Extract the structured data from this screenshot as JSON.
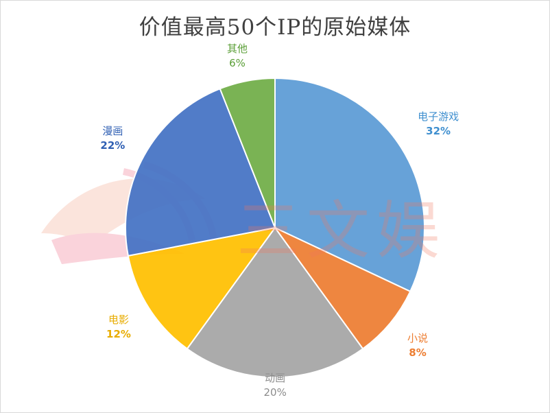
{
  "chart_data": {
    "type": "pie",
    "title": "价值最高50个IP的原始媒体",
    "categories": [
      "电子游戏",
      "小说",
      "动画",
      "电影",
      "漫画",
      "其他"
    ],
    "values": [
      32,
      8,
      20,
      12,
      22,
      6
    ],
    "value_labels": [
      "32%",
      "8%",
      "20%",
      "12%",
      "22%",
      "6%"
    ],
    "colors": [
      "#5b9bd5",
      "#ed7d31",
      "#a5a5a5",
      "#ffc000",
      "#4472c4",
      "#70ad47"
    ],
    "label_colors": [
      "#3f8fcf",
      "#ed7d31",
      "#8c8c8c",
      "#e8ac00",
      "#2f5fb3",
      "#5a9e36"
    ],
    "start_angle_deg": 0,
    "direction": "clockwise",
    "legend": "none"
  },
  "watermark": {
    "text": "三文娱"
  }
}
